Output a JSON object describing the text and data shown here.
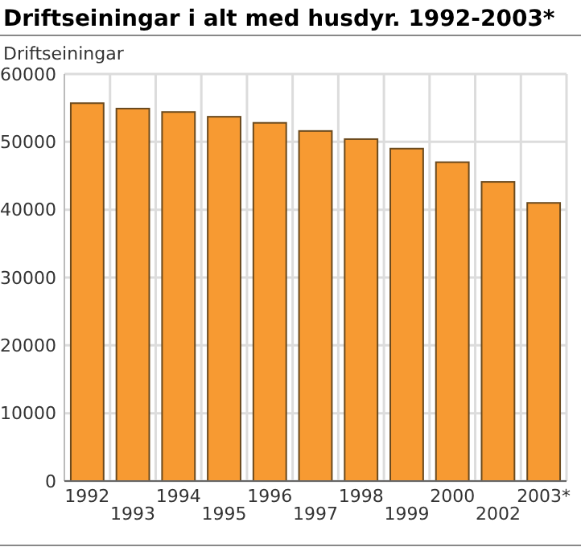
{
  "chart_data": {
    "type": "bar",
    "title": "Driftseiningar i alt med husdyr. 1992-2003*",
    "ylabel": "Driftseiningar",
    "categories": [
      "1992",
      "1993",
      "1994",
      "1995",
      "1996",
      "1997",
      "1998",
      "1999",
      "2000",
      "2002",
      "2003*"
    ],
    "values": [
      55700,
      54900,
      54400,
      53700,
      52800,
      51600,
      50400,
      49000,
      47000,
      44100,
      41000
    ],
    "color": "#f79a32",
    "ylim": [
      0,
      60000
    ],
    "yticks": [
      0,
      10000,
      20000,
      30000,
      40000,
      50000,
      60000
    ],
    "grid": true
  }
}
